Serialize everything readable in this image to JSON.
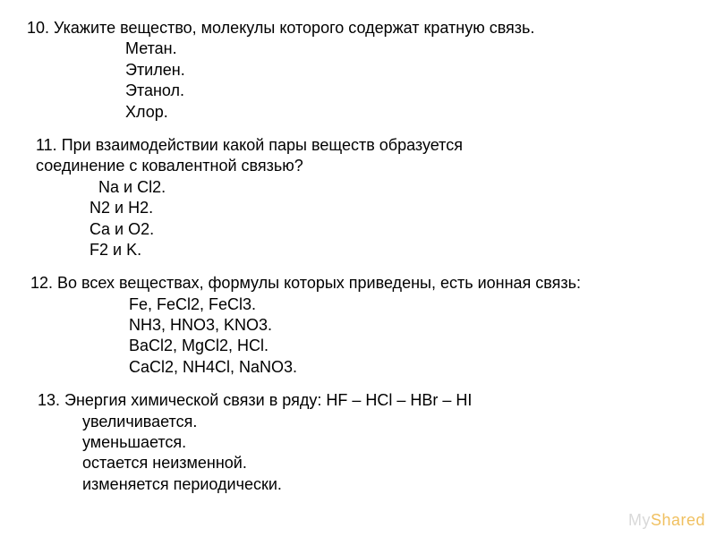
{
  "q10": {
    "text": "10. Укажите вещество, молекулы которого содержат кратную связь.",
    "options": [
      "Метан.",
      "Этилен.",
      "Этанол.",
      "Хлор."
    ]
  },
  "q11": {
    "text1": "11. При взаимодействии какой пары веществ образуется",
    "text2": "соединение с ковалентной связью?",
    "options": [
      "Na и Cl2.",
      "N2 и H2.",
      "Ca и O2.",
      "F2 и K."
    ]
  },
  "q12": {
    "text": "12. Во всех веществах, формулы которых приведены, есть ионная связь:",
    "options": [
      "Fe, FeCl2, FeCl3.",
      "NH3, HNO3, KNO3.",
      "BaCl2, MgCl2, HCl.",
      "CaCl2, NH4Cl, NaNO3."
    ]
  },
  "q13": {
    "text": "13. Энергия химической связи в ряду: HF – HCl – HBr – HI",
    "options": [
      "увеличивается.",
      "уменьшается.",
      "остается неизменной.",
      "изменяется периодически."
    ]
  },
  "watermark": {
    "my": "My",
    "shared": "Shared"
  },
  "style": {
    "background_color": "#ffffff",
    "text_color": "#000000",
    "font_family": "Arial, sans-serif",
    "font_size_pt": 14,
    "watermark_my_color": "#d9d9d9",
    "watermark_shared_color": "#f0c060"
  }
}
